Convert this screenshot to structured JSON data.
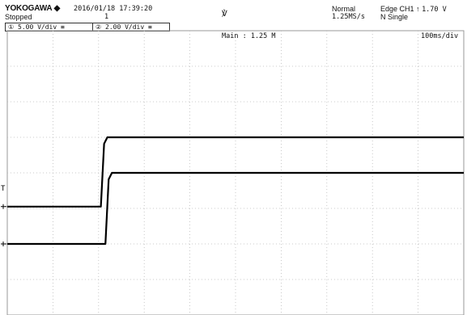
{
  "header": {
    "brand": "YOKOGAWA",
    "brand_icon": "diamond-icon",
    "datetime": "2016/01/18 17:39:20",
    "status": "Stopped",
    "acq_count": "1",
    "mode": "Normal",
    "sample_rate": "1.25MS/s",
    "trigger_line1": "Edge CH1",
    "trigger_level": "1.70 V",
    "trigger_mode": "N Single",
    "trigger_icon": "rising-edge-icon",
    "trigger_pos_icon": "trigger-position-marker-icon"
  },
  "channels": [
    {
      "id": "①",
      "scale": "5.00 V/div",
      "coupling_icon": "dc-coupling-icon"
    },
    {
      "id": "②",
      "scale": "2.00 V/div",
      "coupling_icon": "dc-coupling-icon"
    }
  ],
  "screen": {
    "main_label": "Main : 1.25 M",
    "timebase": "100ms/div",
    "trigger_level_marker": "T"
  },
  "traces": {
    "ch1": {
      "low_level_div": -0.95,
      "high_level_div": 1.0,
      "edge_time_div": 2.05,
      "color": "#000000"
    },
    "ch2": {
      "low_level_div": -2.0,
      "high_level_div": 0.0,
      "edge_time_div": 2.15,
      "color": "#000000"
    }
  }
}
